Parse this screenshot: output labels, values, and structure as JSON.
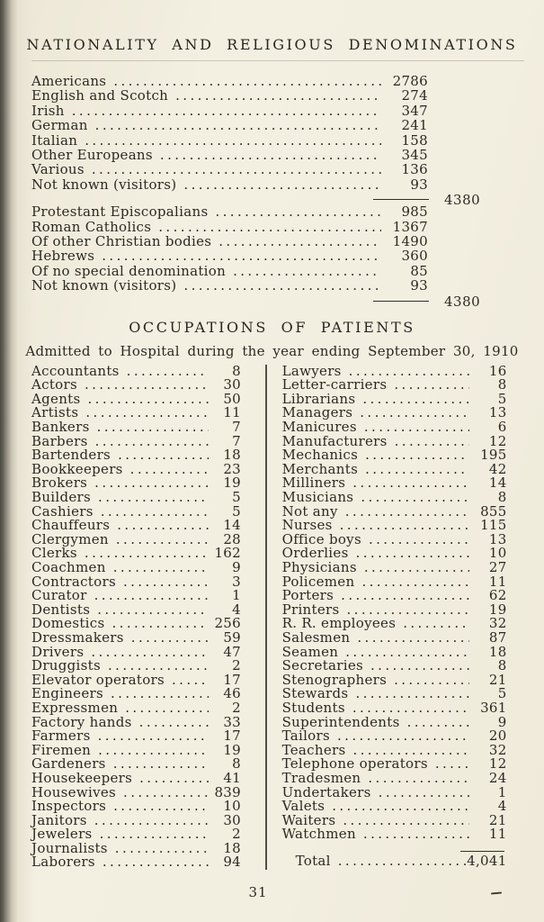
{
  "page": {
    "number": "31",
    "paper_color": "#f2eee0",
    "ink_color": "#2c2922"
  },
  "section1": {
    "title": "NATIONALITY AND RELIGIOUS DENOMINATIONS",
    "nationalities": {
      "rows": [
        {
          "label": "Americans",
          "value": "2786"
        },
        {
          "label": "English and Scotch",
          "value": "274"
        },
        {
          "label": "Irish",
          "value": "347"
        },
        {
          "label": "German",
          "value": "241"
        },
        {
          "label": "Italian",
          "value": "158"
        },
        {
          "label": "Other Europeans",
          "value": "345"
        },
        {
          "label": "Various",
          "value": "136"
        },
        {
          "label": "Not known (visitors)",
          "value": "93"
        }
      ],
      "total": "4380"
    },
    "denominations": {
      "rows": [
        {
          "label": "Protestant Episcopalians",
          "value": "985"
        },
        {
          "label": "Roman Catholics",
          "value": "1367"
        },
        {
          "label": "Of other Christian bodies",
          "value": "1490"
        },
        {
          "label": "Hebrews",
          "value": "360"
        },
        {
          "label": "Of no special denomination",
          "value": "85"
        },
        {
          "label": "Not known (visitors)",
          "value": "93"
        }
      ],
      "total": "4380"
    }
  },
  "section2": {
    "title": "OCCUPATIONS OF PATIENTS",
    "subtitle": "Admitted to Hospital during the year ending September 30, 1910",
    "left_column": [
      {
        "label": "Accountants",
        "value": "8"
      },
      {
        "label": "Actors",
        "value": "30"
      },
      {
        "label": "Agents",
        "value": "50"
      },
      {
        "label": "Artists",
        "value": "11"
      },
      {
        "label": "Bankers",
        "value": "7"
      },
      {
        "label": "Barbers",
        "value": "7"
      },
      {
        "label": "Bartenders",
        "value": "18"
      },
      {
        "label": "Bookkeepers",
        "value": "23"
      },
      {
        "label": "Brokers",
        "value": "19"
      },
      {
        "label": "Builders",
        "value": "5"
      },
      {
        "label": "Cashiers",
        "value": "5"
      },
      {
        "label": "Chauffeurs",
        "value": "14"
      },
      {
        "label": "Clergymen",
        "value": "28"
      },
      {
        "label": "Clerks",
        "value": "162"
      },
      {
        "label": "Coachmen",
        "value": "9"
      },
      {
        "label": "Contractors",
        "value": "3"
      },
      {
        "label": "Curator",
        "value": "1"
      },
      {
        "label": "Dentists",
        "value": "4"
      },
      {
        "label": "Domestics",
        "value": "256"
      },
      {
        "label": "Dressmakers",
        "value": "59"
      },
      {
        "label": "Drivers",
        "value": "47"
      },
      {
        "label": "Druggists",
        "value": "2"
      },
      {
        "label": "Elevator operators",
        "value": "17"
      },
      {
        "label": "Engineers",
        "value": "46"
      },
      {
        "label": "Expressmen",
        "value": "2"
      },
      {
        "label": "Factory hands",
        "value": "33"
      },
      {
        "label": "Farmers",
        "value": "17"
      },
      {
        "label": "Firemen",
        "value": "19"
      },
      {
        "label": "Gardeners",
        "value": "8"
      },
      {
        "label": "Housekeepers",
        "value": "41"
      },
      {
        "label": "Housewives",
        "value": "839"
      },
      {
        "label": "Inspectors",
        "value": "10"
      },
      {
        "label": "Janitors",
        "value": "30"
      },
      {
        "label": "Jewelers",
        "value": "2"
      },
      {
        "label": "Journalists",
        "value": "18"
      },
      {
        "label": "Laborers",
        "value": "94"
      }
    ],
    "right_column": [
      {
        "label": "Lawyers",
        "value": "16"
      },
      {
        "label": "Letter-carriers",
        "value": "8"
      },
      {
        "label": "Librarians",
        "value": "5"
      },
      {
        "label": "Managers",
        "value": "13"
      },
      {
        "label": "Manicures",
        "value": "6"
      },
      {
        "label": "Manufacturers",
        "value": "12"
      },
      {
        "label": "Mechanics",
        "value": "195"
      },
      {
        "label": "Merchants",
        "value": "42"
      },
      {
        "label": "Milliners",
        "value": "14"
      },
      {
        "label": "Musicians",
        "value": "8"
      },
      {
        "label": "Not any",
        "value": "855"
      },
      {
        "label": "Nurses",
        "value": "115"
      },
      {
        "label": "Office boys",
        "value": "13"
      },
      {
        "label": "Orderlies",
        "value": "10"
      },
      {
        "label": "Physicians",
        "value": "27"
      },
      {
        "label": "Policemen",
        "value": "11"
      },
      {
        "label": "Porters",
        "value": "62"
      },
      {
        "label": "Printers",
        "value": "19"
      },
      {
        "label": "R. R. employees",
        "value": "32"
      },
      {
        "label": "Salesmen",
        "value": "87"
      },
      {
        "label": "Seamen",
        "value": "18"
      },
      {
        "label": "Secretaries",
        "value": "8"
      },
      {
        "label": "Stenographers",
        "value": "21"
      },
      {
        "label": "Stewards",
        "value": "5"
      },
      {
        "label": "Students",
        "value": "361"
      },
      {
        "label": "Superintendents",
        "value": "9"
      },
      {
        "label": "Tailors",
        "value": "20"
      },
      {
        "label": "Teachers",
        "value": "32"
      },
      {
        "label": "Telephone operators",
        "value": "12"
      },
      {
        "label": "Tradesmen",
        "value": "24"
      },
      {
        "label": "Undertakers",
        "value": "1"
      },
      {
        "label": "Valets",
        "value": "4"
      },
      {
        "label": "Waiters",
        "value": "21"
      },
      {
        "label": "Watchmen",
        "value": "11"
      }
    ],
    "total_label": "Total",
    "total_value": "4,041"
  }
}
